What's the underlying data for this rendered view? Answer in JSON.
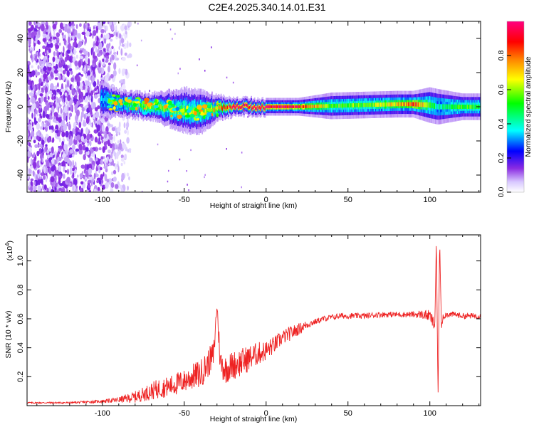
{
  "figure": {
    "title": "C2E4.2025.340.14.01.E31"
  },
  "chart_data": [
    {
      "type": "heatmap",
      "title": "C2E4.2025.340.14.01.E31",
      "xlabel": "Height of straight line (km)",
      "ylabel": "Frequency (Hz)",
      "xlim": [
        -146,
        131
      ],
      "ylim": [
        -50,
        50
      ],
      "x_ticks": [
        -100,
        -50,
        0,
        50,
        100
      ],
      "y_ticks": [
        -40,
        -20,
        0,
        20,
        40
      ],
      "colorbar": {
        "label": "Normalized spectral amplitude",
        "range": [
          0,
          1
        ],
        "ticks": [
          0,
          0.2,
          0.4,
          0.6,
          0.8
        ],
        "tick_labels": [
          "0.0",
          "0.2",
          "0.4",
          "0.6",
          "0.8"
        ],
        "colors": [
          "#ffffff",
          "#d8c8ff",
          "#8a2be2",
          "#0000ff",
          "#00ffff",
          "#00ff00",
          "#ffff00",
          "#ff8000",
          "#ff0000",
          "#ff0080"
        ]
      },
      "signal_track": [
        {
          "x": -100,
          "center_hz": 4,
          "width_hz": 4,
          "peak": 0.35
        },
        {
          "x": -90,
          "center_hz": 2,
          "width_hz": 3,
          "peak": 0.45
        },
        {
          "x": -80,
          "center_hz": 1,
          "width_hz": 3,
          "peak": 0.5
        },
        {
          "x": -70,
          "center_hz": 0,
          "width_hz": 3,
          "peak": 0.65
        },
        {
          "x": -60,
          "center_hz": -1,
          "width_hz": 4,
          "peak": 0.55
        },
        {
          "x": -50,
          "center_hz": -2,
          "width_hz": 5,
          "peak": 0.6
        },
        {
          "x": -40,
          "center_hz": -3,
          "width_hz": 5,
          "peak": 0.55
        },
        {
          "x": -30,
          "center_hz": -1,
          "width_hz": 3,
          "peak": 0.7
        },
        {
          "x": -20,
          "center_hz": 0,
          "width_hz": 2,
          "peak": 0.95
        },
        {
          "x": 0,
          "center_hz": 0,
          "width_hz": 2,
          "peak": 0.98
        },
        {
          "x": 20,
          "center_hz": 0,
          "width_hz": 2,
          "peak": 0.9
        },
        {
          "x": 40,
          "center_hz": 0.5,
          "width_hz": 3,
          "peak": 0.55
        },
        {
          "x": 60,
          "center_hz": 1,
          "width_hz": 3,
          "peak": 0.55
        },
        {
          "x": 80,
          "center_hz": 1.5,
          "width_hz": 3,
          "peak": 0.7
        },
        {
          "x": 90,
          "center_hz": 1.5,
          "width_hz": 3,
          "peak": 0.85
        },
        {
          "x": 100,
          "center_hz": 1,
          "width_hz": 4,
          "peak": 0.55
        },
        {
          "x": 105,
          "center_hz": 0,
          "width_hz": 4,
          "peak": 0.4
        },
        {
          "x": 120,
          "center_hz": 0,
          "width_hz": 3,
          "peak": 0.55
        },
        {
          "x": 131,
          "center_hz": 0,
          "width_hz": 3,
          "peak": 0.5
        }
      ],
      "noise_region_x": [
        -146,
        -83
      ]
    },
    {
      "type": "line",
      "xlabel": "Height of straight line (km)",
      "ylabel": "SNR (10 * v/v)",
      "y_multiplier_label": "(x10",
      "y_multiplier_exp": "4",
      "xlim": [
        -146,
        131
      ],
      "ylim": [
        0,
        1.18
      ],
      "x_ticks": [
        -100,
        -50,
        0,
        50,
        100
      ],
      "y_ticks": [
        0.2,
        0.4,
        0.6,
        0.8,
        1.0
      ],
      "y_tick_labels": [
        "0.2",
        "0.4",
        "0.6",
        "0.8",
        "1.0"
      ],
      "series": [
        {
          "color": "#ee2222",
          "x": [
            -146,
            -120,
            -100,
            -90,
            -80,
            -75,
            -70,
            -65,
            -60,
            -55,
            -50,
            -45,
            -40,
            -38,
            -35,
            -32,
            -30,
            -28,
            -25,
            -20,
            -15,
            -10,
            -5,
            0,
            5,
            10,
            15,
            20,
            25,
            30,
            35,
            40,
            45,
            50,
            60,
            70,
            80,
            90,
            95,
            100,
            103,
            104,
            105,
            106,
            107,
            108,
            110,
            115,
            120,
            125,
            131
          ],
          "y": [
            0.02,
            0.02,
            0.03,
            0.04,
            0.06,
            0.08,
            0.1,
            0.12,
            0.13,
            0.15,
            0.17,
            0.2,
            0.22,
            0.25,
            0.3,
            0.35,
            0.7,
            0.3,
            0.25,
            0.28,
            0.3,
            0.33,
            0.36,
            0.38,
            0.42,
            0.47,
            0.5,
            0.53,
            0.56,
            0.58,
            0.6,
            0.61,
            0.62,
            0.62,
            0.62,
            0.63,
            0.63,
            0.63,
            0.63,
            0.62,
            0.55,
            1.15,
            0.07,
            1.15,
            0.55,
            0.62,
            0.63,
            0.63,
            0.62,
            0.62,
            0.62
          ],
          "noise_amplitude": [
            0.005,
            0.006,
            0.01,
            0.02,
            0.04,
            0.05,
            0.06,
            0.07,
            0.07,
            0.08,
            0.08,
            0.09,
            0.1,
            0.1,
            0.1,
            0.1,
            0.05,
            0.1,
            0.1,
            0.1,
            0.1,
            0.09,
            0.08,
            0.07,
            0.06,
            0.05,
            0.05,
            0.04,
            0.03,
            0.02,
            0.02,
            0.02,
            0.02,
            0.02,
            0.02,
            0.02,
            0.02,
            0.02,
            0.03,
            0.04,
            0.05,
            0.0,
            0.0,
            0.0,
            0.05,
            0.03,
            0.02,
            0.02,
            0.02,
            0.02,
            0.02
          ]
        }
      ]
    }
  ]
}
